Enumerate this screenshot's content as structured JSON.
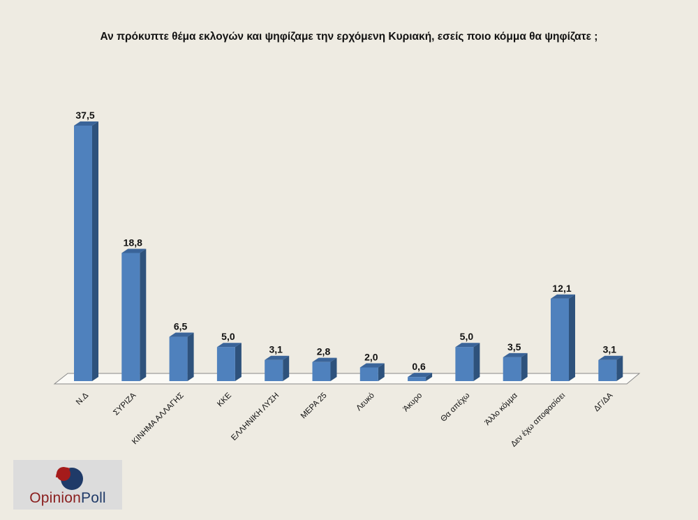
{
  "chart_data": {
    "type": "bar",
    "title": "Αν πρόκυπτε θέμα εκλογών και ψηφίζαμε την ερχόμενη Κυριακή, εσείς ποιο κόμμα θα ψηφίζατε ;",
    "categories": [
      "Ν.Δ",
      "ΣΥΡΙΖΑ",
      "ΚΙΝΗΜΑ ΑΛΛΑΓΗΣ",
      "ΚΚΕ",
      "ΕΛΛΗΝΙΚΗ ΛΥΣΗ",
      "ΜΕΡΑ 25",
      "Λευκό",
      "Άκυρο",
      "Θα απέχω",
      "Άλλο κόμμα",
      "Δεν έχω αποφασίσει",
      "ΔΓ/ΔΑ"
    ],
    "values": [
      37.5,
      18.8,
      6.5,
      5.0,
      3.1,
      2.8,
      2.0,
      0.6,
      5.0,
      3.5,
      12.1,
      3.1
    ],
    "value_labels": [
      "37,5",
      "18,8",
      "6,5",
      "5,0",
      "3,1",
      "2,8",
      "2,0",
      "0,6",
      "5,0",
      "3,5",
      "12,1",
      "3,1"
    ],
    "xlabel": "",
    "ylabel": "",
    "ylim": [
      0,
      37.5
    ],
    "grid": false,
    "style": "3d-bar",
    "colors": {
      "bar_front": "#4f81bd",
      "bar_side": "#2e527c",
      "bar_top": "#3a6499"
    }
  },
  "logo": {
    "left": "Opinion",
    "right": "Poll"
  }
}
